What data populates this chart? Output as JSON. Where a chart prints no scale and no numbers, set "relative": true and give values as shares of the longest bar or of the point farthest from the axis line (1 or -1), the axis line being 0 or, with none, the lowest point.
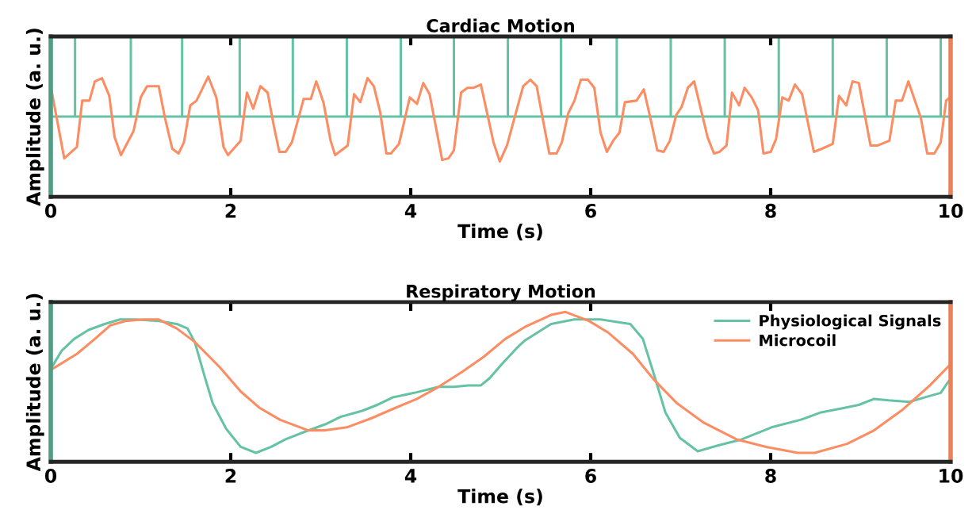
{
  "chart_data": [
    {
      "type": "line",
      "title": "Cardiac Motion",
      "xlabel": "Time (s)",
      "ylabel": "Amplitude (a. u.)",
      "relative": true,
      "xlim": [
        0,
        10
      ],
      "xticks": [
        0,
        2,
        4,
        6,
        8,
        10
      ],
      "tick_labels": "x",
      "grid": false,
      "legend": false,
      "line_style": "solid",
      "marker": "none",
      "series": [
        {
          "color": "#66c2a5",
          "x": [
            0,
            0.27,
            0.27,
            0.27,
            0.89,
            0.89,
            0.89,
            1.46,
            1.46,
            1.46,
            2.1,
            2.1,
            2.1,
            2.69,
            2.69,
            2.69,
            3.29,
            3.29,
            3.29,
            3.89,
            3.89,
            3.89,
            4.48,
            4.48,
            4.48,
            5.08,
            5.08,
            5.08,
            5.67,
            5.67,
            5.67,
            6.29,
            6.29,
            6.29,
            6.89,
            6.89,
            6.89,
            7.49,
            7.49,
            7.49,
            8.09,
            8.09,
            8.09,
            8.69,
            8.69,
            8.69,
            9.29,
            9.29,
            9.29,
            9.89,
            9.89,
            9.89,
            10
          ],
          "values": [
            0.5,
            0.5,
            1,
            0.5,
            0.5,
            1,
            0.5,
            0.5,
            1,
            0.5,
            0.5,
            1,
            0.5,
            0.5,
            1,
            0.5,
            0.5,
            1,
            0.5,
            0.5,
            1,
            0.5,
            0.5,
            1,
            0.5,
            0.5,
            1,
            0.5,
            0.5,
            1,
            0.5,
            0.5,
            1,
            0.5,
            0.5,
            1,
            0.5,
            0.5,
            1,
            0.5,
            0.5,
            1,
            0.5,
            0.5,
            1,
            0.5,
            0.5,
            1,
            0.5,
            0.5,
            1,
            0.5,
            0.5
          ]
        },
        {
          "color": "#fc8d62",
          "x": [
            0.01,
            0.15,
            0.29,
            0.35,
            0.43,
            0.49,
            0.57,
            0.65,
            0.71,
            0.78,
            0.92,
            1.0,
            1.07,
            1.2,
            1.27,
            1.35,
            1.42,
            1.48,
            1.55,
            1.62,
            1.75,
            1.84,
            1.92,
            1.97,
            2.11,
            2.18,
            2.25,
            2.33,
            2.41,
            2.48,
            2.54,
            2.61,
            2.68,
            2.81,
            2.89,
            2.95,
            3.03,
            3.11,
            3.16,
            3.3,
            3.37,
            3.44,
            3.52,
            3.59,
            3.66,
            3.73,
            3.78,
            3.87,
            3.99,
            4.07,
            4.14,
            4.21,
            4.35,
            4.42,
            4.48,
            4.56,
            4.63,
            4.7,
            4.78,
            4.92,
            4.99,
            5.07,
            5.25,
            5.33,
            5.4,
            5.54,
            5.62,
            5.68,
            5.75,
            5.82,
            5.89,
            5.97,
            6.04,
            6.11,
            6.18,
            6.25,
            6.32,
            6.38,
            6.51,
            6.59,
            6.66,
            6.74,
            6.81,
            6.88,
            6.95,
            7.01,
            7.08,
            7.15,
            7.3,
            7.37,
            7.43,
            7.51,
            7.57,
            7.65,
            7.71,
            7.79,
            7.86,
            7.92,
            8.0,
            8.06,
            8.13,
            8.2,
            8.27,
            8.35,
            8.48,
            8.57,
            8.69,
            8.76,
            8.84,
            8.91,
            8.98,
            9.11,
            9.19,
            9.32,
            9.39,
            9.46,
            9.53,
            9.67,
            9.74,
            9.82,
            9.89,
            9.95,
            9.99
          ],
          "values": [
            0.66,
            0.24,
            0.31,
            0.6,
            0.6,
            0.72,
            0.74,
            0.63,
            0.37,
            0.26,
            0.41,
            0.62,
            0.69,
            0.69,
            0.49,
            0.3,
            0.27,
            0.34,
            0.57,
            0.6,
            0.75,
            0.62,
            0.31,
            0.26,
            0.35,
            0.65,
            0.55,
            0.69,
            0.65,
            0.44,
            0.28,
            0.28,
            0.34,
            0.61,
            0.61,
            0.72,
            0.59,
            0.35,
            0.26,
            0.32,
            0.64,
            0.59,
            0.74,
            0.69,
            0.53,
            0.27,
            0.27,
            0.33,
            0.62,
            0.58,
            0.71,
            0.64,
            0.23,
            0.24,
            0.29,
            0.65,
            0.68,
            0.68,
            0.7,
            0.34,
            0.22,
            0.32,
            0.69,
            0.73,
            0.69,
            0.27,
            0.27,
            0.34,
            0.52,
            0.6,
            0.73,
            0.73,
            0.68,
            0.4,
            0.28,
            0.35,
            0.4,
            0.59,
            0.6,
            0.67,
            0.5,
            0.29,
            0.28,
            0.35,
            0.51,
            0.56,
            0.68,
            0.72,
            0.37,
            0.27,
            0.28,
            0.32,
            0.65,
            0.57,
            0.68,
            0.62,
            0.54,
            0.27,
            0.28,
            0.36,
            0.62,
            0.6,
            0.7,
            0.64,
            0.28,
            0.3,
            0.33,
            0.63,
            0.57,
            0.72,
            0.71,
            0.32,
            0.32,
            0.35,
            0.6,
            0.6,
            0.72,
            0.49,
            0.27,
            0.27,
            0.34,
            0.6,
            0.62
          ]
        }
      ]
    },
    {
      "type": "line",
      "title": "Respiratory Motion",
      "xlabel": "Time (s)",
      "ylabel": "Amplitude (a. u.)",
      "relative": true,
      "xlim": [
        0,
        10
      ],
      "xticks": [
        0,
        2,
        4,
        6,
        8,
        10
      ],
      "tick_labels": "x",
      "grid": false,
      "legend": "top right",
      "line_style": "solid",
      "marker": "none",
      "series": [
        {
          "name": "Physiological Signals",
          "color": "#66c2a5",
          "x": [
            0.02,
            0.12,
            0.26,
            0.42,
            0.6,
            0.77,
            0.94,
            1.2,
            1.4,
            1.52,
            1.6,
            1.71,
            1.8,
            1.95,
            2.11,
            2.28,
            2.45,
            2.61,
            2.82,
            3.05,
            3.22,
            3.46,
            3.63,
            3.8,
            4.04,
            4.31,
            4.48,
            4.64,
            4.78,
            4.88,
            5.01,
            5.18,
            5.27,
            5.56,
            5.82,
            6.11,
            6.44,
            6.58,
            6.7,
            6.83,
            6.99,
            7.19,
            7.42,
            7.68,
            8.01,
            8.33,
            8.56,
            8.82,
            8.98,
            9.15,
            9.31,
            9.54,
            9.77,
            9.89,
            9.98
          ],
          "values": [
            0.64,
            0.74,
            0.82,
            0.88,
            0.92,
            0.95,
            0.95,
            0.94,
            0.92,
            0.89,
            0.8,
            0.57,
            0.39,
            0.22,
            0.1,
            0.06,
            0.1,
            0.15,
            0.2,
            0.25,
            0.3,
            0.34,
            0.38,
            0.43,
            0.46,
            0.5,
            0.5,
            0.51,
            0.51,
            0.56,
            0.65,
            0.76,
            0.81,
            0.92,
            0.95,
            0.95,
            0.92,
            0.82,
            0.59,
            0.33,
            0.16,
            0.07,
            0.11,
            0.15,
            0.23,
            0.28,
            0.33,
            0.36,
            0.38,
            0.42,
            0.41,
            0.4,
            0.44,
            0.46,
            0.54
          ]
        },
        {
          "name": "Microcoil",
          "color": "#fc8d62",
          "x": [
            0.02,
            0.29,
            0.49,
            0.66,
            0.83,
            1.03,
            1.2,
            1.4,
            1.6,
            1.88,
            2.11,
            2.32,
            2.55,
            2.86,
            3.05,
            3.29,
            3.56,
            3.83,
            4.07,
            4.31,
            4.57,
            4.81,
            5.05,
            5.27,
            5.56,
            5.72,
            5.98,
            6.2,
            6.47,
            6.7,
            6.96,
            7.26,
            7.62,
            7.95,
            8.3,
            8.49,
            8.85,
            9.15,
            9.47,
            9.77,
            9.98
          ],
          "values": [
            0.62,
            0.72,
            0.82,
            0.91,
            0.94,
            0.95,
            0.95,
            0.89,
            0.8,
            0.63,
            0.47,
            0.36,
            0.28,
            0.21,
            0.21,
            0.23,
            0.29,
            0.36,
            0.42,
            0.5,
            0.6,
            0.7,
            0.82,
            0.9,
            0.98,
            1.0,
            0.94,
            0.86,
            0.72,
            0.55,
            0.39,
            0.26,
            0.15,
            0.1,
            0.06,
            0.06,
            0.12,
            0.21,
            0.35,
            0.51,
            0.64
          ]
        }
      ]
    }
  ]
}
